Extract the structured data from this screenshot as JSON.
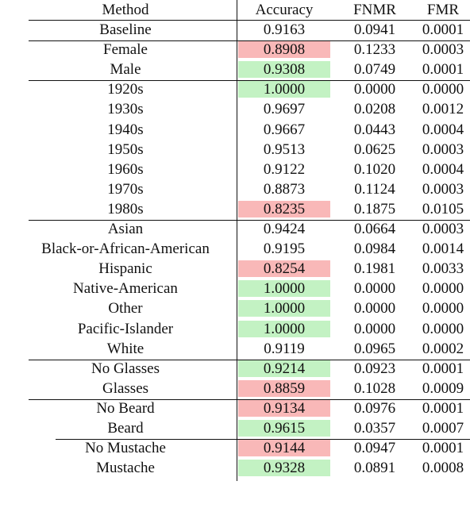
{
  "table": {
    "headers": [
      "Method",
      "Accuracy",
      "FNMR",
      "FMR"
    ],
    "rows": [
      {
        "method": "Baseline",
        "accuracy": "0.9163",
        "fnmr": "0.0941",
        "fmr": "0.0001",
        "highlight": ""
      },
      {
        "method": "Female",
        "accuracy": "0.8908",
        "fnmr": "0.1233",
        "fmr": "0.0003",
        "highlight": "low"
      },
      {
        "method": "Male",
        "accuracy": "0.9308",
        "fnmr": "0.0749",
        "fmr": "0.0001",
        "highlight": "high"
      },
      {
        "method": "1920s",
        "accuracy": "1.0000",
        "fnmr": "0.0000",
        "fmr": "0.0000",
        "highlight": "high"
      },
      {
        "method": "1930s",
        "accuracy": "0.9697",
        "fnmr": "0.0208",
        "fmr": "0.0012",
        "highlight": ""
      },
      {
        "method": "1940s",
        "accuracy": "0.9667",
        "fnmr": "0.0443",
        "fmr": "0.0004",
        "highlight": ""
      },
      {
        "method": "1950s",
        "accuracy": "0.9513",
        "fnmr": "0.0625",
        "fmr": "0.0003",
        "highlight": ""
      },
      {
        "method": "1960s",
        "accuracy": "0.9122",
        "fnmr": "0.1020",
        "fmr": "0.0004",
        "highlight": ""
      },
      {
        "method": "1970s",
        "accuracy": "0.8873",
        "fnmr": "0.1124",
        "fmr": "0.0003",
        "highlight": ""
      },
      {
        "method": "1980s",
        "accuracy": "0.8235",
        "fnmr": "0.1875",
        "fmr": "0.0105",
        "highlight": "low"
      },
      {
        "method": "Asian",
        "accuracy": "0.9424",
        "fnmr": "0.0664",
        "fmr": "0.0003",
        "highlight": ""
      },
      {
        "method": "Black-or-African-American",
        "accuracy": "0.9195",
        "fnmr": "0.0984",
        "fmr": "0.0014",
        "highlight": ""
      },
      {
        "method": "Hispanic",
        "accuracy": "0.8254",
        "fnmr": "0.1981",
        "fmr": "0.0033",
        "highlight": "low"
      },
      {
        "method": "Native-American",
        "accuracy": "1.0000",
        "fnmr": "0.0000",
        "fmr": "0.0000",
        "highlight": "high"
      },
      {
        "method": "Other",
        "accuracy": "1.0000",
        "fnmr": "0.0000",
        "fmr": "0.0000",
        "highlight": "high"
      },
      {
        "method": "Pacific-Islander",
        "accuracy": "1.0000",
        "fnmr": "0.0000",
        "fmr": "0.0000",
        "highlight": "high"
      },
      {
        "method": "White",
        "accuracy": "0.9119",
        "fnmr": "0.0965",
        "fmr": "0.0002",
        "highlight": ""
      },
      {
        "method": "No Glasses",
        "accuracy": "0.9214",
        "fnmr": "0.0923",
        "fmr": "0.0001",
        "highlight": "high"
      },
      {
        "method": "Glasses",
        "accuracy": "0.8859",
        "fnmr": "0.1028",
        "fmr": "0.0009",
        "highlight": "low"
      },
      {
        "method": "No Beard",
        "accuracy": "0.9134",
        "fnmr": "0.0976",
        "fmr": "0.0001",
        "highlight": "low"
      },
      {
        "method": "Beard",
        "accuracy": "0.9615",
        "fnmr": "0.0357",
        "fmr": "0.0007",
        "highlight": "high"
      },
      {
        "method": "No Mustache",
        "accuracy": "0.9144",
        "fnmr": "0.0947",
        "fmr": "0.0001",
        "highlight": "low"
      },
      {
        "method": "Mustache",
        "accuracy": "0.9328",
        "fnmr": "0.0891",
        "fmr": "0.0008",
        "highlight": "high"
      }
    ]
  },
  "colors": {
    "low_highlight": "#f9b8b8",
    "high_highlight": "#c3f2c3",
    "rule": "#111111"
  }
}
